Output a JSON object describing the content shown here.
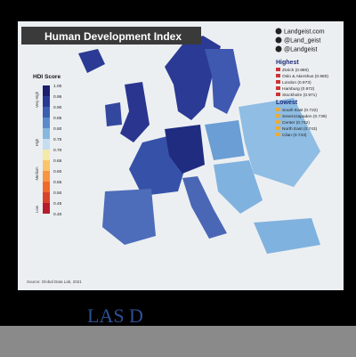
{
  "header": {
    "title": "Human Development Index",
    "social": [
      "Landgeist.com",
      "@Land_geist",
      "@Landgeist"
    ]
  },
  "legend": {
    "title": "HDI Score",
    "ticks": [
      "1.00",
      "0.95",
      "0.90",
      "0.85",
      "0.80",
      "0.75",
      "0.70",
      "0.65",
      "0.60",
      "0.55",
      "0.50",
      "0.45",
      "0.40"
    ],
    "bands": [
      "Very High",
      "High",
      "Medium",
      "Low"
    ]
  },
  "highest": {
    "title": "Highest",
    "items": [
      "Zürich (0.980)",
      "Oslo & Akershus (0.980)",
      "London (0.973)",
      "Hamburg (0.972)",
      "Stockholm (0.971)"
    ]
  },
  "lowest": {
    "title": "Lowest",
    "items": [
      "South East (0.722)",
      "Severozapaden (0.739)",
      "Center (0.742)",
      "North East (0.743)",
      "Cilan (0.743)"
    ]
  },
  "source": "Source: Global Data Lab, 2021",
  "footer": {
    "caption": "LAS D"
  }
}
